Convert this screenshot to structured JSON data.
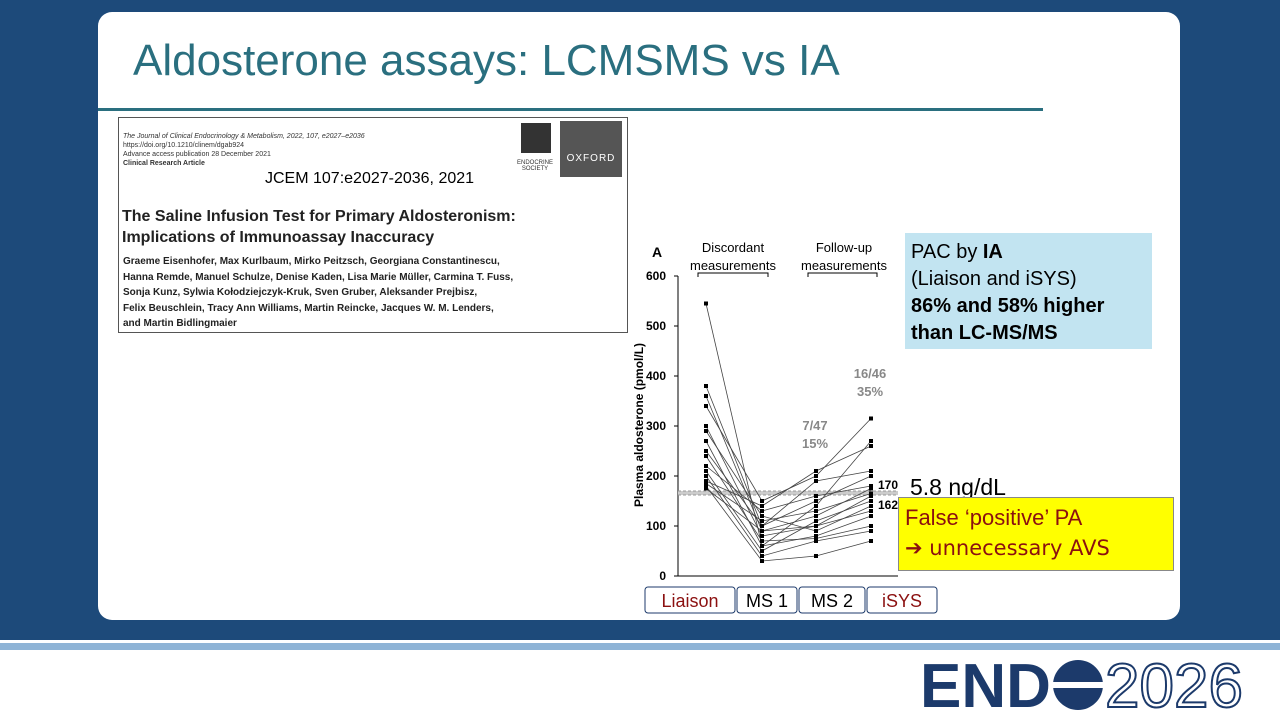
{
  "slide_title": "Aldosterone assays: LCMSMS vs IA",
  "citation": {
    "journal": "The Journal of Clinical Endocrinology & Metabolism, 2022, 107, e2027–e2036",
    "doi": "https://doi.org/10.1210/clinem/dgab924",
    "access": "Advance access publication 28 December 2021",
    "kind": "Clinical Research Article",
    "ref": "JCEM 107:e2027-2036, 2021",
    "society": "ENDOCRINE SOCIETY",
    "publisher": "OXFORD",
    "article_title": [
      "The Saline Infusion Test for Primary Aldosteronism:",
      "Implications of Immunoassay Inaccuracy"
    ],
    "authors": [
      "Graeme Eisenhofer, Max Kurlbaum, Mirko Peitzsch, Georgiana Constantinescu,",
      "Hanna Remde, Manuel Schulze, Denise Kaden, Lisa Marie Müller, Carmina T. Fuss,",
      "Sonja Kunz, Sylwia Kołodziejczyk-Kruk, Sven Gruber, Aleksander Prejbisz,",
      "Felix Beuschlein, Tracy Ann Williams, Martin Reincke, Jacques W. M. Lenders,",
      "and Martin Bidlingmaier"
    ]
  },
  "chart_data": {
    "type": "line",
    "panel": "A",
    "y_label": "Plasma aldosterone (pmol/L)",
    "categories": [
      "Liaison",
      "MS 1",
      "MS 2",
      "iSYS"
    ],
    "groups": [
      "Discordant measurements",
      "Follow-up measurements"
    ],
    "ylim": [
      0,
      600
    ],
    "yticks": [
      0,
      100,
      200,
      300,
      400,
      500,
      600
    ],
    "color": "#444444",
    "reference_lines": [
      170,
      162
    ],
    "annotations": [
      [
        "7/47",
        "15%"
      ],
      [
        "16/46",
        "35%"
      ]
    ],
    "series": [
      {
        "values": [
          545,
          60,
          80,
          120
        ]
      },
      {
        "values": [
          380,
          100,
          150,
          200
        ]
      },
      {
        "values": [
          360,
          90,
          120,
          175
        ]
      },
      {
        "values": [
          340,
          150,
          200,
          315
        ]
      },
      {
        "values": [
          300,
          80,
          100,
          160
        ]
      },
      {
        "values": [
          290,
          120,
          90,
          140
        ]
      },
      {
        "values": [
          270,
          60,
          140,
          270
        ]
      },
      {
        "values": [
          250,
          100,
          190,
          210
        ]
      },
      {
        "values": [
          240,
          70,
          75,
          100
        ]
      },
      {
        "values": [
          220,
          130,
          160,
          180
        ]
      },
      {
        "values": [
          210,
          50,
          110,
          150
        ]
      },
      {
        "values": [
          200,
          40,
          70,
          90
        ]
      },
      {
        "values": [
          190,
          140,
          210,
          260
        ]
      },
      {
        "values": [
          185,
          110,
          130,
          165
        ]
      },
      {
        "values": [
          180,
          30,
          40,
          70
        ]
      },
      {
        "values": [
          175,
          90,
          100,
          130
        ]
      }
    ]
  },
  "callout_ia": {
    "prefix": "PAC by ",
    "bold": "IA",
    "line2": "(Liaison and iSYS)",
    "line3": "86% and 58% higher",
    "line4": "than LC-MS/MS"
  },
  "threshold": "5.8 ng/dL",
  "callout_false": [
    "False ‘positive’ PA",
    "➔ unnecessary AVS"
  ],
  "logo": {
    "word": "END",
    "year": "2026"
  }
}
